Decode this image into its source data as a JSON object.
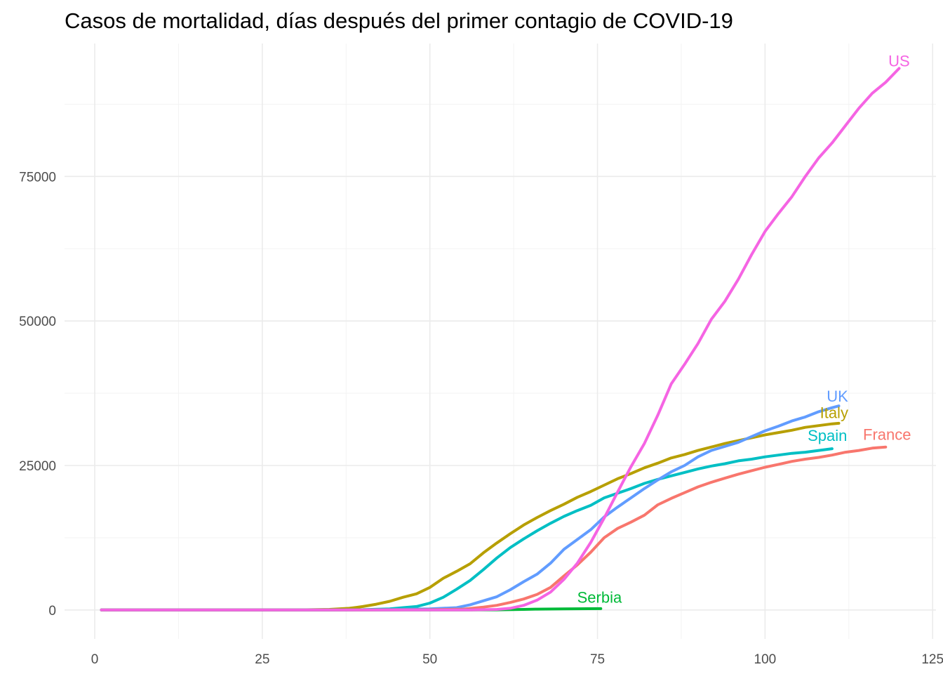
{
  "chart_data": {
    "type": "line",
    "title": "Casos de mortalidad, días después del primer contagio de COVID-19",
    "xlabel": "",
    "ylabel": "",
    "xlim": [
      -4.5,
      125.5
    ],
    "ylim": [
      -5000,
      98000
    ],
    "x_ticks": [
      0,
      25,
      50,
      75,
      100,
      125
    ],
    "y_ticks": [
      0,
      25000,
      50000,
      75000
    ],
    "x_ticks_labels": [
      "0",
      "25",
      "50",
      "75",
      "100",
      "125"
    ],
    "y_ticks_labels": [
      "0",
      "25000",
      "50000",
      "75000"
    ],
    "grid": true,
    "legend": "none (direct labels at line ends)",
    "series": [
      {
        "name": "Italy",
        "color": "#B79F00",
        "x": [
          1,
          30,
          35,
          38,
          40,
          42,
          44,
          46,
          48,
          50,
          52,
          54,
          56,
          58,
          60,
          62,
          64,
          66,
          68,
          70,
          72,
          74,
          76,
          78,
          80,
          82,
          84,
          86,
          88,
          90,
          92,
          94,
          96,
          98,
          100,
          102,
          104,
          106,
          108,
          110,
          111
        ],
        "y": [
          0,
          0,
          100,
          300,
          600,
          1000,
          1500,
          2200,
          2800,
          3900,
          5500,
          6700,
          8000,
          9900,
          11600,
          13200,
          14700,
          16000,
          17200,
          18300,
          19500,
          20500,
          21600,
          22700,
          23600,
          24600,
          25400,
          26300,
          26900,
          27600,
          28200,
          28800,
          29300,
          29800,
          30300,
          30700,
          31100,
          31600,
          31900,
          32200,
          32300
        ]
      },
      {
        "name": "Spain",
        "color": "#00BFC4",
        "x": [
          1,
          35,
          40,
          44,
          46,
          48,
          50,
          52,
          54,
          56,
          58,
          60,
          62,
          64,
          66,
          68,
          70,
          72,
          74,
          76,
          78,
          80,
          82,
          84,
          86,
          88,
          90,
          92,
          94,
          96,
          98,
          100,
          102,
          104,
          106,
          108,
          110
        ],
        "y": [
          0,
          0,
          50,
          200,
          400,
          600,
          1200,
          2200,
          3600,
          5100,
          7000,
          9000,
          10800,
          12300,
          13700,
          15000,
          16200,
          17200,
          18100,
          19400,
          20200,
          21000,
          21900,
          22600,
          23200,
          23800,
          24400,
          24900,
          25300,
          25800,
          26100,
          26500,
          26800,
          27100,
          27300,
          27600,
          27900
        ]
      },
      {
        "name": "UK",
        "color": "#619CFF",
        "x": [
          1,
          35,
          45,
          50,
          54,
          56,
          58,
          60,
          62,
          64,
          66,
          68,
          70,
          72,
          74,
          76,
          78,
          80,
          82,
          84,
          86,
          88,
          90,
          92,
          94,
          96,
          98,
          100,
          102,
          104,
          106,
          108,
          110,
          111
        ],
        "y": [
          0,
          0,
          100,
          200,
          400,
          900,
          1600,
          2300,
          3500,
          4900,
          6200,
          8100,
          10500,
          12200,
          13900,
          16100,
          17800,
          19400,
          21000,
          22500,
          23900,
          25000,
          26500,
          27600,
          28300,
          29000,
          30000,
          31000,
          31800,
          32700,
          33400,
          34300,
          35000,
          35300
        ]
      },
      {
        "name": "France",
        "color": "#F8766D",
        "x": [
          1,
          40,
          50,
          55,
          58,
          60,
          62,
          64,
          66,
          68,
          70,
          72,
          74,
          76,
          78,
          80,
          82,
          84,
          86,
          88,
          90,
          92,
          94,
          96,
          98,
          100,
          102,
          104,
          106,
          108,
          110,
          112,
          114,
          116,
          118
        ],
        "y": [
          0,
          0,
          50,
          150,
          500,
          800,
          1300,
          1900,
          2700,
          3900,
          5900,
          7800,
          10000,
          12500,
          14100,
          15200,
          16400,
          18200,
          19300,
          20300,
          21300,
          22100,
          22800,
          23500,
          24100,
          24700,
          25200,
          25700,
          26100,
          26400,
          26800,
          27300,
          27600,
          28000,
          28200
        ]
      },
      {
        "name": "Serbia",
        "color": "#00BA38",
        "x": [
          1,
          45,
          55,
          60,
          64,
          66,
          70,
          75.5
        ],
        "y": [
          0,
          0,
          10,
          30,
          100,
          150,
          200,
          240
        ]
      },
      {
        "name": "US",
        "color": "#F564E3",
        "x": [
          1,
          50,
          56,
          60,
          62,
          64,
          66,
          68,
          70,
          72,
          74,
          76,
          78,
          80,
          82,
          84,
          86,
          88,
          90,
          92,
          94,
          96,
          98,
          100,
          102,
          104,
          106,
          108,
          110,
          112,
          114,
          116,
          118,
          120
        ],
        "y": [
          0,
          0,
          20,
          100,
          300,
          800,
          1700,
          3100,
          5300,
          8100,
          11700,
          15900,
          20400,
          24800,
          28800,
          33700,
          39100,
          42500,
          46100,
          50300,
          53400,
          57200,
          61500,
          65500,
          68600,
          71500,
          75000,
          78200,
          80800,
          83800,
          86800,
          89400,
          91300,
          93700
        ]
      }
    ],
    "annotations": [
      {
        "text": "US",
        "x": 120,
        "y": 95000,
        "color": "#F564E3"
      },
      {
        "text": "UK",
        "x": 110.8,
        "y": 37000,
        "color": "#619CFF"
      },
      {
        "text": "Italy",
        "x": 110.3,
        "y": 34200,
        "color": "#B79F00"
      },
      {
        "text": "Spain",
        "x": 109.3,
        "y": 30200,
        "color": "#00BFC4"
      },
      {
        "text": "France",
        "x": 118.2,
        "y": 30400,
        "color": "#F8766D"
      },
      {
        "text": "Serbia",
        "x": 75.3,
        "y": 2200,
        "color": "#00BA38"
      }
    ]
  }
}
